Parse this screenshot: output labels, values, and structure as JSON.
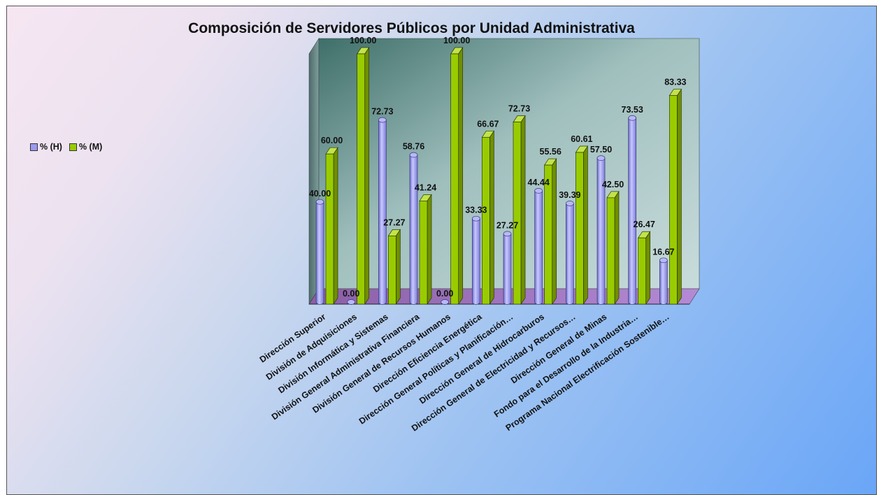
{
  "chart_data": {
    "type": "bar",
    "title": "Composición de Servidores Públicos por Unidad Administrativa",
    "xlabel": "",
    "ylabel": "",
    "ylim": [
      0,
      100
    ],
    "grid": false,
    "legend_position": "left",
    "categories": [
      "Dirección Superior",
      "División de Adquisiciones",
      "División Informática y Sistemas",
      "División General Administrativa Financiera",
      "División General de Recursos Humanos",
      "Dirección Eficiencia Energética",
      "Dirección General Políticas y Planificación…",
      "Dirección General de Hidrocarburos",
      "Dirección General de Electricidad y Recursos…",
      "Dirección General de Minas",
      "Fondo para el Desarrollo de la Industria…",
      "Programa Nacional Electrificación Sostenible…"
    ],
    "series": [
      {
        "name": "% (H)",
        "values": [
          40.0,
          0.0,
          72.73,
          58.76,
          0.0,
          33.33,
          27.27,
          44.44,
          39.39,
          57.5,
          73.53,
          16.67
        ],
        "labels": [
          "40.00",
          "0.00",
          "72.73",
          "58.76",
          "0.00",
          "33.33",
          "27.27",
          "44.44",
          "39.39",
          "57.50",
          "73.53",
          "16.67"
        ],
        "color": "#9a9af0"
      },
      {
        "name": "% (M)",
        "values": [
          60.0,
          100.0,
          27.27,
          41.24,
          100.0,
          66.67,
          72.73,
          55.56,
          60.61,
          42.5,
          26.47,
          83.33
        ],
        "labels": [
          "60.00",
          "100.00",
          "27.27",
          "41.24",
          "100.00",
          "66.67",
          "72.73",
          "55.56",
          "60.61",
          "42.50",
          "26.47",
          "83.33"
        ],
        "color": "#99cc00"
      }
    ]
  }
}
